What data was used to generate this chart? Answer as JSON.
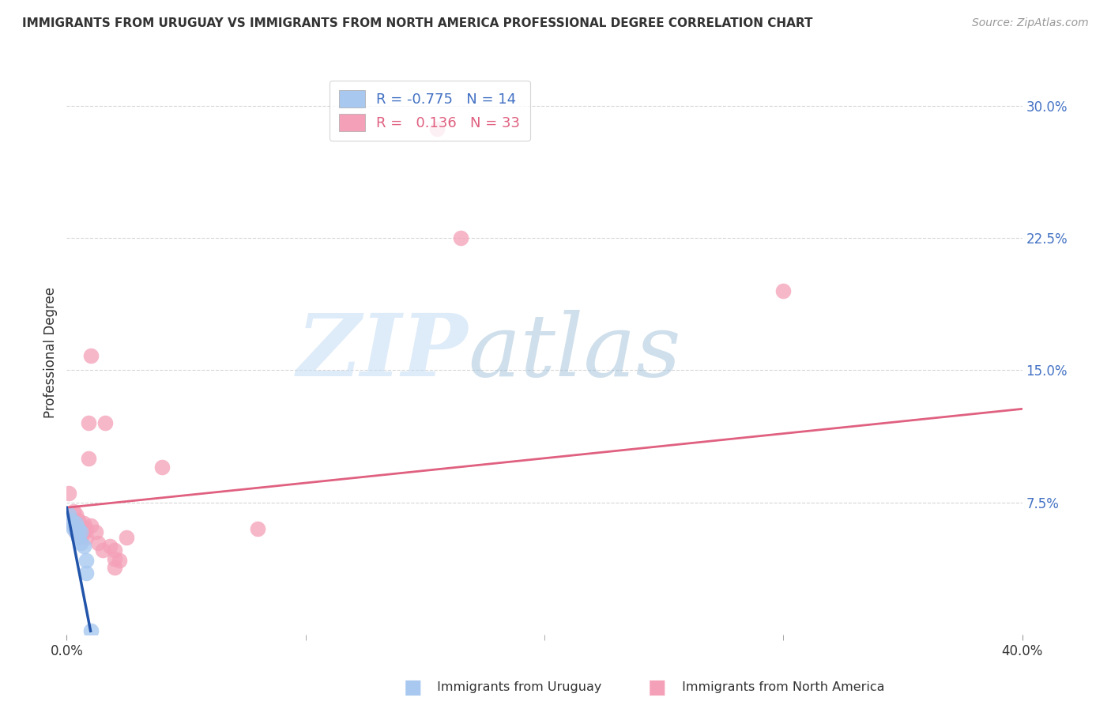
{
  "title": "IMMIGRANTS FROM URUGUAY VS IMMIGRANTS FROM NORTH AMERICA PROFESSIONAL DEGREE CORRELATION CHART",
  "source": "Source: ZipAtlas.com",
  "ylabel": "Professional Degree",
  "xlim": [
    0.0,
    0.4
  ],
  "ylim": [
    0.0,
    0.32
  ],
  "ytick_positions": [
    0.075,
    0.15,
    0.225,
    0.3
  ],
  "ytick_labels": [
    "7.5%",
    "15.0%",
    "22.5%",
    "30.0%"
  ],
  "legend_r_blue": "-0.775",
  "legend_n_blue": "14",
  "legend_r_pink": "0.136",
  "legend_n_pink": "33",
  "blue_color": "#A8C8F0",
  "pink_color": "#F4A0B8",
  "blue_line_color": "#2255AA",
  "pink_line_color": "#E06080",
  "blue_scatter_x": [
    0.001,
    0.002,
    0.003,
    0.003,
    0.004,
    0.004,
    0.005,
    0.005,
    0.006,
    0.006,
    0.007,
    0.008,
    0.008,
    0.01
  ],
  "blue_scatter_y": [
    0.068,
    0.065,
    0.062,
    0.06,
    0.063,
    0.058,
    0.06,
    0.055,
    0.058,
    0.052,
    0.05,
    0.042,
    0.035,
    0.002
  ],
  "pink_scatter_x": [
    0.001,
    0.002,
    0.003,
    0.003,
    0.004,
    0.004,
    0.005,
    0.005,
    0.006,
    0.006,
    0.007,
    0.007,
    0.008,
    0.008,
    0.009,
    0.009,
    0.01,
    0.01,
    0.012,
    0.013,
    0.015,
    0.016,
    0.018,
    0.02,
    0.02,
    0.02,
    0.022,
    0.025,
    0.04,
    0.08,
    0.155,
    0.165,
    0.3
  ],
  "pink_scatter_y": [
    0.08,
    0.065,
    0.07,
    0.062,
    0.068,
    0.058,
    0.065,
    0.06,
    0.062,
    0.055,
    0.063,
    0.058,
    0.06,
    0.055,
    0.12,
    0.1,
    0.158,
    0.062,
    0.058,
    0.052,
    0.048,
    0.12,
    0.05,
    0.038,
    0.043,
    0.048,
    0.042,
    0.055,
    0.095,
    0.06,
    0.287,
    0.225,
    0.195
  ],
  "pink_trend_x0": 0.0,
  "pink_trend_y0": 0.072,
  "pink_trend_x1": 0.4,
  "pink_trend_y1": 0.128,
  "blue_trend_x0": 0.0,
  "blue_trend_y0": 0.072,
  "blue_trend_x1": 0.01,
  "blue_trend_y1": 0.002
}
